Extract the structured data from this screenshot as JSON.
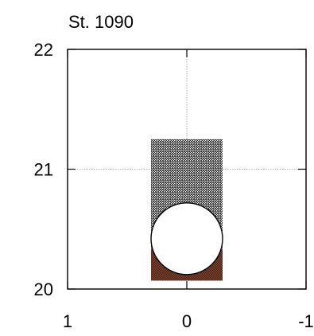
{
  "chart_data": {
    "type": "bar",
    "title": "St. 1090",
    "xlabel": "",
    "ylabel": "",
    "xlim": [
      1,
      -1
    ],
    "ylim": [
      20,
      22
    ],
    "x_ticks": [
      1,
      0,
      -1
    ],
    "x_tick_labels": [
      "1",
      "0",
      "-1"
    ],
    "y_ticks": [
      20,
      21,
      22
    ],
    "y_tick_labels": [
      "20",
      "21",
      "22"
    ],
    "grid": "dotted lines at x=0 and y=21",
    "bar": {
      "x_from": 0.3,
      "x_to": -0.3,
      "segments": [
        {
          "pattern": "brown-dotted",
          "color": "#6b3524",
          "y_from": 20.07,
          "y_to": 20.33
        },
        {
          "pattern": "gray-dotted",
          "color": "#555555",
          "y_from": 20.33,
          "y_to": 21.25
        }
      ]
    },
    "circle": {
      "x": 0.0,
      "y": 20.42,
      "radius_x": 0.3,
      "fill": "#ffffff"
    }
  }
}
